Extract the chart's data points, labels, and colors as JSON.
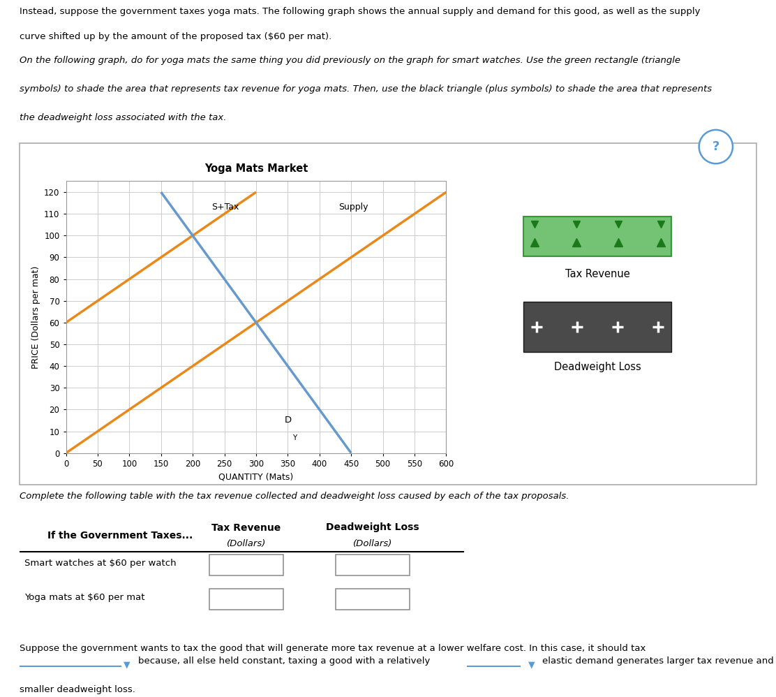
{
  "title": "Yoga Mats Market",
  "xlabel": "QUANTITY (Mats)",
  "ylabel": "PRICE (Dollars per mat)",
  "xlim": [
    0,
    600
  ],
  "ylim": [
    0,
    125
  ],
  "xticks": [
    0,
    50,
    100,
    150,
    200,
    250,
    300,
    350,
    400,
    450,
    500,
    550,
    600
  ],
  "yticks": [
    0,
    10,
    20,
    30,
    40,
    50,
    60,
    70,
    80,
    90,
    100,
    110,
    120
  ],
  "supply_color": "#E8891A",
  "demand_color": "#6699CC",
  "supply_pt1": [
    0,
    0
  ],
  "supply_pt2": [
    600,
    120
  ],
  "supply_tax_pt1": [
    0,
    60
  ],
  "supply_tax_pt2": [
    300,
    120
  ],
  "demand_pt1": [
    150,
    120
  ],
  "demand_pt2": [
    450,
    0
  ],
  "tax_eq_Q": 200,
  "tax_eq_P_buyer": 100,
  "tax_eq_P_seller": 40,
  "free_eq_Q": 300,
  "free_eq_P": 60,
  "tax_revenue_color": "#5CB85C",
  "dwl_color": "#2a2a2a",
  "s_tax_label": "S+Tax",
  "supply_label": "Supply",
  "demand_label": "D",
  "demand_subscript": "Y",
  "grid_color": "#cccccc",
  "panel_bg": "#ffffff",
  "question_circle_color": "#5b9bd5",
  "intro_line1": "Instead, suppose the government taxes yoga mats. The following graph shows the annual supply and demand for this good, as well as the supply",
  "intro_line2": "curve shifted up by the amount of the proposed tax ($60 per mat).",
  "instr_line1": "On the following graph, do for yoga mats the same thing you did previously on the graph for smart watches. Use the green rectangle (triangle",
  "instr_line2": "symbols) to shade the area that represents tax revenue for yoga mats. Then, use the black triangle (plus symbols) to shade the area that represents",
  "instr_line3": "the deadweight loss associated with the tax.",
  "legend_tax_label": "Tax Revenue",
  "legend_dwl_label": "Deadweight Loss",
  "table_intro": "Complete the following table with the tax revenue collected and deadweight loss caused by each of the tax proposals.",
  "table_header_row": "If the Government Taxes...",
  "table_col1": "Tax Revenue",
  "table_col2": "Deadweight Loss",
  "table_sub1": "(Dollars)",
  "table_sub2": "(Dollars)",
  "table_row1": "Smart watches at $60 per watch",
  "table_row2": "Yoga mats at $60 per mat",
  "footer1": "Suppose the government wants to tax the good that will generate more tax revenue at a lower welfare cost. In this case, it should tax",
  "footer2": "because, all else held constant, taxing a good with a relatively",
  "footer3": "elastic demand generates larger tax revenue and",
  "footer4": "smaller deadweight loss."
}
